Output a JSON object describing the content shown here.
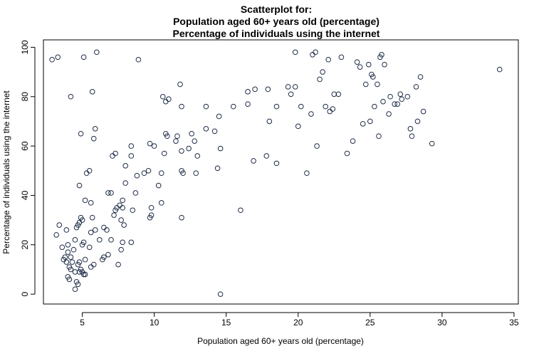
{
  "chart_data": {
    "type": "scatter",
    "title": [
      "Scatterplot for:",
      "Population aged 60+ years old (percentage)",
      "Percentage of individuals using the internet"
    ],
    "xlabel": "Population aged 60+ years old (percentage)",
    "ylabel": "Percentage of individuals using the internet",
    "xlim": [
      2.3,
      35.3
    ],
    "ylim": [
      -4,
      103
    ],
    "xticks": [
      5,
      10,
      15,
      20,
      25,
      30,
      35
    ],
    "yticks": [
      0,
      20,
      40,
      60,
      80,
      100
    ],
    "grid": false,
    "marker": "open-circle",
    "marker_color": "#1f2d48",
    "points": [
      [
        2.9,
        95
      ],
      [
        3.3,
        96
      ],
      [
        5.1,
        96
      ],
      [
        6.0,
        98
      ],
      [
        8.9,
        95
      ],
      [
        4.2,
        80
      ],
      [
        5.7,
        82
      ],
      [
        4.9,
        65
      ],
      [
        5.9,
        67
      ],
      [
        5.8,
        63
      ],
      [
        3.2,
        24
      ],
      [
        3.4,
        28
      ],
      [
        3.9,
        26
      ],
      [
        3.6,
        19
      ],
      [
        3.8,
        15
      ],
      [
        3.9,
        13
      ],
      [
        4.0,
        20
      ],
      [
        4.0,
        17
      ],
      [
        4.2,
        15
      ],
      [
        4.3,
        13
      ],
      [
        4.1,
        11
      ],
      [
        4.2,
        10
      ],
      [
        4.0,
        7
      ],
      [
        4.1,
        6
      ],
      [
        3.7,
        14
      ],
      [
        4.4,
        18
      ],
      [
        4.6,
        27
      ],
      [
        4.7,
        28
      ],
      [
        4.5,
        22
      ],
      [
        4.8,
        29
      ],
      [
        5.0,
        30
      ],
      [
        4.9,
        31
      ],
      [
        5.2,
        38
      ],
      [
        4.8,
        44
      ],
      [
        5.3,
        49
      ],
      [
        5.5,
        50
      ],
      [
        5.1,
        21
      ],
      [
        5.0,
        20
      ],
      [
        5.2,
        14
      ],
      [
        4.7,
        12
      ],
      [
        4.8,
        13
      ],
      [
        4.5,
        9
      ],
      [
        4.9,
        10
      ],
      [
        4.8,
        9
      ],
      [
        5.1,
        8
      ],
      [
        5.2,
        8
      ],
      [
        5.0,
        9
      ],
      [
        4.6,
        5
      ],
      [
        4.7,
        4
      ],
      [
        4.5,
        2
      ],
      [
        5.6,
        11
      ],
      [
        5.8,
        12
      ],
      [
        5.5,
        19
      ],
      [
        5.6,
        25
      ],
      [
        5.7,
        31
      ],
      [
        5.6,
        37
      ],
      [
        5.9,
        26
      ],
      [
        6.2,
        22
      ],
      [
        6.5,
        15
      ],
      [
        6.4,
        14
      ],
      [
        6.8,
        16
      ],
      [
        6.5,
        27
      ],
      [
        6.7,
        26
      ],
      [
        7.0,
        22
      ],
      [
        6.8,
        41
      ],
      [
        7.0,
        41
      ],
      [
        7.1,
        56
      ],
      [
        7.3,
        57
      ],
      [
        7.2,
        32
      ],
      [
        7.3,
        34
      ],
      [
        7.4,
        35
      ],
      [
        7.6,
        36
      ],
      [
        7.7,
        30
      ],
      [
        7.9,
        28
      ],
      [
        7.5,
        12
      ],
      [
        7.7,
        18
      ],
      [
        7.8,
        21
      ],
      [
        7.8,
        35
      ],
      [
        7.8,
        38
      ],
      [
        8.0,
        45
      ],
      [
        8.0,
        52
      ],
      [
        8.4,
        60
      ],
      [
        8.4,
        56
      ],
      [
        8.5,
        34
      ],
      [
        8.7,
        41
      ],
      [
        8.8,
        48
      ],
      [
        8.4,
        21
      ],
      [
        9.3,
        49
      ],
      [
        9.6,
        50
      ],
      [
        9.7,
        61
      ],
      [
        10.0,
        60
      ],
      [
        9.8,
        35
      ],
      [
        9.8,
        32
      ],
      [
        9.7,
        31
      ],
      [
        10.3,
        44
      ],
      [
        10.5,
        37
      ],
      [
        10.5,
        49
      ],
      [
        10.6,
        80
      ],
      [
        10.8,
        78
      ],
      [
        11.0,
        79
      ],
      [
        10.7,
        57
      ],
      [
        10.8,
        65
      ],
      [
        10.9,
        64
      ],
      [
        11.5,
        62
      ],
      [
        11.6,
        64
      ],
      [
        11.8,
        85
      ],
      [
        11.9,
        76
      ],
      [
        11.9,
        58
      ],
      [
        11.9,
        50
      ],
      [
        12.0,
        49
      ],
      [
        11.9,
        31
      ],
      [
        12.4,
        59
      ],
      [
        12.6,
        65
      ],
      [
        12.8,
        62
      ],
      [
        12.9,
        49
      ],
      [
        13.0,
        56
      ],
      [
        13.6,
        67
      ],
      [
        13.6,
        76
      ],
      [
        14.2,
        66
      ],
      [
        14.4,
        51
      ],
      [
        14.5,
        72
      ],
      [
        14.6,
        59
      ],
      [
        14.6,
        0
      ],
      [
        15.5,
        76
      ],
      [
        16.0,
        34
      ],
      [
        16.5,
        77
      ],
      [
        16.5,
        82
      ],
      [
        17.0,
        83
      ],
      [
        16.9,
        54
      ],
      [
        17.8,
        56
      ],
      [
        17.9,
        83
      ],
      [
        18.0,
        70
      ],
      [
        18.5,
        76
      ],
      [
        18.5,
        53
      ],
      [
        19.3,
        84
      ],
      [
        19.5,
        81
      ],
      [
        19.8,
        98
      ],
      [
        19.8,
        84
      ],
      [
        20.0,
        68
      ],
      [
        20.2,
        76
      ],
      [
        20.6,
        49
      ],
      [
        20.9,
        73
      ],
      [
        21.0,
        97
      ],
      [
        21.2,
        98
      ],
      [
        21.3,
        60
      ],
      [
        21.5,
        87
      ],
      [
        21.7,
        90
      ],
      [
        21.9,
        76
      ],
      [
        22.1,
        95
      ],
      [
        22.2,
        74
      ],
      [
        22.4,
        75
      ],
      [
        22.5,
        81
      ],
      [
        22.8,
        81
      ],
      [
        23.0,
        96
      ],
      [
        23.4,
        57
      ],
      [
        23.8,
        62
      ],
      [
        24.1,
        94
      ],
      [
        24.3,
        92
      ],
      [
        24.5,
        69
      ],
      [
        24.7,
        85
      ],
      [
        24.9,
        93
      ],
      [
        25.0,
        70
      ],
      [
        25.1,
        89
      ],
      [
        25.2,
        88
      ],
      [
        25.3,
        76
      ],
      [
        25.5,
        85
      ],
      [
        25.6,
        64
      ],
      [
        25.7,
        96
      ],
      [
        25.8,
        97
      ],
      [
        25.9,
        78
      ],
      [
        26.0,
        93
      ],
      [
        26.3,
        73
      ],
      [
        26.4,
        80
      ],
      [
        26.7,
        77
      ],
      [
        26.9,
        77
      ],
      [
        27.1,
        81
      ],
      [
        27.2,
        79
      ],
      [
        27.6,
        80
      ],
      [
        27.8,
        67
      ],
      [
        27.9,
        64
      ],
      [
        28.2,
        84
      ],
      [
        28.3,
        70
      ],
      [
        28.5,
        88
      ],
      [
        28.7,
        74
      ],
      [
        29.3,
        61
      ],
      [
        34.0,
        91
      ]
    ]
  }
}
